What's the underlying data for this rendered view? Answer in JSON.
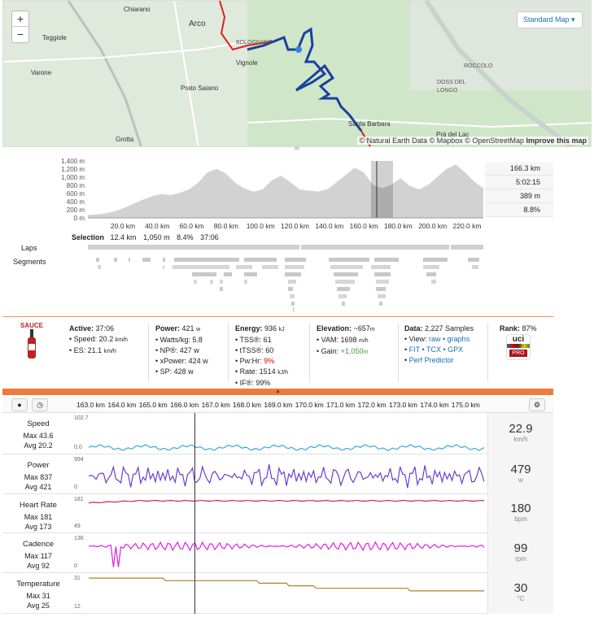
{
  "map": {
    "zoom_in": "+",
    "zoom_out": "−",
    "type_selector": "Standard Map ▾",
    "attribution_prefix": "© Natural Earth Data © Mapbox © OpenStreetMap ",
    "attribution_link": "Improve this map",
    "places": [
      "Chiarano",
      "Arco",
      "Teggiole",
      "Varone",
      "Vignole",
      "Prato Saiano",
      "Grotta",
      "Santa Barbara",
      "Prà del Lac",
      "DOSS DEL LONGO",
      "ROCCOLO",
      "BOLOGNANO"
    ]
  },
  "elevation": {
    "y_ticks": [
      "1,400 m",
      "1,200 m",
      "1,000 m",
      "800 m",
      "600 m",
      "400 m",
      "200 m",
      "0 m"
    ],
    "x_ticks": [
      "20.0 km",
      "40.0 km",
      "60.0 km",
      "80.0 km",
      "100.0 km",
      "120.0 km",
      "140.0 km",
      "160.0 km",
      "180.0 km",
      "200.0 km",
      "220.0 km"
    ],
    "stats": [
      "166.3 km",
      "5:02:15",
      "389 m",
      "8.8%"
    ],
    "selection_label": "Selection",
    "selection": [
      "12.4 km",
      "1,050 m",
      "8.4%",
      "37:06"
    ],
    "laps_label": "Laps",
    "segments_label": "Segments",
    "grip": "═"
  },
  "sauce": {
    "logo": "SAUCE",
    "active": {
      "label": "Active:",
      "value": "37:06",
      "speed": "• Speed: 20.2",
      "speed_unit": "km/h",
      "es": "• ES: 21.1",
      "es_unit": "km/h"
    },
    "power": {
      "label": "Power:",
      "value": "421",
      "unit": "w",
      "lines": [
        "• Watts/kg: 5.8",
        "• NP®: 427 w",
        "• xPower: 424 w",
        "• SP: 428 w"
      ]
    },
    "energy": {
      "label": "Energy:",
      "value": "936",
      "unit": "kJ",
      "tss": "• TSS®: 61",
      "ttss": "• tTSS®: 60",
      "pwhr_label": "• Pw:Hr: ",
      "pwhr": "9%",
      "rate": "• Rate: 1514",
      "rate_unit": "kJ/h",
      "if": "• IF®: 99%"
    },
    "elevation": {
      "label": "Elevation:",
      "value": "~657",
      "unit": "m",
      "vam": "• VAM: 1698",
      "vam_unit": "m/h",
      "gain_label": "• Gain: ",
      "gain": "+1,050",
      "gain_unit": "m"
    },
    "data": {
      "label": "Data:",
      "value": "2,227 Samples",
      "view_label": "• View: ",
      "raw": "raw",
      "graphs": "graphs",
      "fit": "FIT",
      "tcx": "TCX",
      "gpx": "GPX",
      "perf": "Perf Predictor"
    },
    "rank": {
      "label": "Rank:",
      "value": "87%",
      "badge_top": "uci",
      "badge_bottom": "PRO"
    },
    "expand": "▲"
  },
  "bottom": {
    "pin_icon": "●",
    "clock_icon": "◷",
    "gear_icon": "⚙",
    "km_ticks": [
      "163.0 km",
      "164.0 km",
      "165.0 km",
      "166.0 km",
      "167.0 km",
      "168.0 km",
      "169.0 km",
      "170.0 km",
      "171.0 km",
      "172.0 km",
      "173.0 km",
      "174.0 km",
      "175.0 km"
    ],
    "panels": [
      {
        "title": "Speed",
        "max": "Max 43.6",
        "avg": "Avg 20.2",
        "ymax": "102.7",
        "ymin": "0.0",
        "value": "22.9",
        "unit": "km/h",
        "color": "#3aa6e0"
      },
      {
        "title": "Power",
        "max": "Max 837",
        "avg": "Avg 421",
        "ymax": "994",
        "ymin": "0",
        "value": "479",
        "unit": "w",
        "color": "#6a3fd0"
      },
      {
        "title": "Heart Rate",
        "max": "Max 181",
        "avg": "Avg 173",
        "ymax": "181",
        "ymin": "49",
        "value": "180",
        "unit": "bpm",
        "color": "#d02060"
      },
      {
        "title": "Cadence",
        "max": "Max 117",
        "avg": "Avg 92",
        "ymax": "136",
        "ymin": "0",
        "value": "99",
        "unit": "rpm",
        "color": "#e020e0"
      },
      {
        "title": "Temperature",
        "max": "Max 31",
        "avg": "Avg 25",
        "ymax": "31",
        "ymin": "12",
        "value": "30",
        "unit": "°C",
        "color": "#b08030"
      }
    ]
  }
}
